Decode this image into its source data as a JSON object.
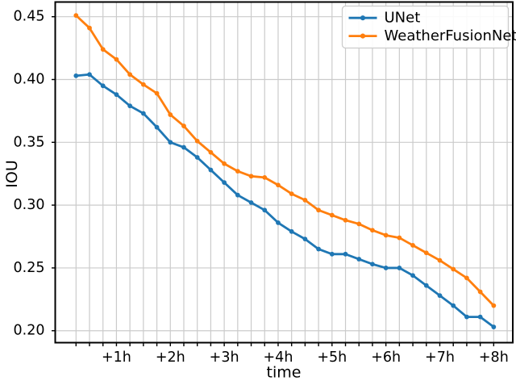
{
  "page": {
    "background": "#ffffff"
  },
  "legend": {
    "items": [
      "UNet",
      "WeatherFusionNet"
    ]
  },
  "chart_data": {
    "type": "line",
    "title": "",
    "xlabel": "time",
    "ylabel": "IOU",
    "x_unit": "hours_ahead",
    "x_hours": [
      0.25,
      0.5,
      0.75,
      1.0,
      1.25,
      1.5,
      1.75,
      2.0,
      2.25,
      2.5,
      2.75,
      3.0,
      3.25,
      3.5,
      3.75,
      4.0,
      4.25,
      4.5,
      4.75,
      5.0,
      5.25,
      5.5,
      5.75,
      6.0,
      6.25,
      6.5,
      6.75,
      7.0,
      7.25,
      7.5,
      7.75,
      8.0
    ],
    "series": [
      {
        "name": "UNet",
        "color": "#1f77b4",
        "marker": "o",
        "values": [
          0.403,
          0.404,
          0.395,
          0.388,
          0.379,
          0.373,
          0.362,
          0.35,
          0.346,
          0.338,
          0.328,
          0.318,
          0.308,
          0.302,
          0.296,
          0.286,
          0.279,
          0.273,
          0.265,
          0.261,
          0.261,
          0.257,
          0.253,
          0.25,
          0.25,
          0.244,
          0.236,
          0.228,
          0.22,
          0.211,
          0.211,
          0.203
        ]
      },
      {
        "name": "WeatherFusionNet",
        "color": "#ff7f0e",
        "marker": "o",
        "values": [
          0.451,
          0.441,
          0.424,
          0.416,
          0.404,
          0.396,
          0.389,
          0.372,
          0.363,
          0.351,
          0.342,
          0.333,
          0.327,
          0.323,
          0.322,
          0.316,
          0.309,
          0.304,
          0.296,
          0.292,
          0.288,
          0.285,
          0.28,
          0.276,
          0.274,
          0.268,
          0.262,
          0.256,
          0.249,
          0.242,
          0.231,
          0.22
        ]
      }
    ],
    "x_major_ticks": [
      {
        "value": 1,
        "label": "+1h"
      },
      {
        "value": 2,
        "label": "+2h"
      },
      {
        "value": 3,
        "label": "+3h"
      },
      {
        "value": 4,
        "label": "+4h"
      },
      {
        "value": 5,
        "label": "+5h"
      },
      {
        "value": 6,
        "label": "+6h"
      },
      {
        "value": 7,
        "label": "+7h"
      },
      {
        "value": 8,
        "label": "+8h"
      }
    ],
    "x_minor_tick_step": 0.25,
    "x_tick_range": [
      0.25,
      8.0
    ],
    "x_grid_range": [
      0.25,
      8.25
    ],
    "y_ticks": [
      0.2,
      0.25,
      0.3,
      0.35,
      0.4,
      0.45
    ],
    "xlim": [
      -0.136,
      8.354
    ],
    "ylim": [
      0.1905,
      0.4617
    ],
    "grid": true,
    "legend_position": "upper right",
    "colors": {
      "grid": "#cbcbcb",
      "frame": "#000000",
      "text": "#000000"
    }
  }
}
